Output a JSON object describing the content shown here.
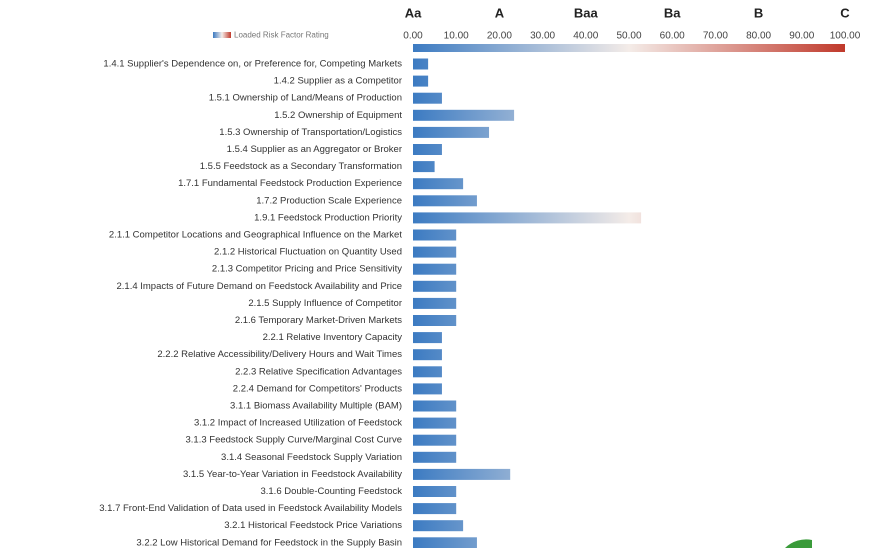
{
  "chart_data": {
    "type": "bar",
    "orientation": "horizontal",
    "legend_label": "Loaded Risk Factor Rating",
    "color_scale": [
      "#3c7bc2",
      "#f4ece8",
      "#c0392b"
    ],
    "xlim": [
      0,
      100
    ],
    "xticks": [
      {
        "value": 0,
        "label": "0.00"
      },
      {
        "value": 10,
        "label": "10.00"
      },
      {
        "value": 20,
        "label": "20.00"
      },
      {
        "value": 30,
        "label": "30.00"
      },
      {
        "value": 40,
        "label": "40.00"
      },
      {
        "value": 50,
        "label": "50.00"
      },
      {
        "value": 60,
        "label": "60.00"
      },
      {
        "value": 70,
        "label": "70.00"
      },
      {
        "value": 80,
        "label": "80.00"
      },
      {
        "value": 90,
        "label": "90.00"
      },
      {
        "value": 100,
        "label": "100.00"
      }
    ],
    "rating_ticks": [
      {
        "value": 0,
        "label": "Aa"
      },
      {
        "value": 20,
        "label": "A"
      },
      {
        "value": 40,
        "label": "Baa"
      },
      {
        "value": 60,
        "label": "Ba"
      },
      {
        "value": 80,
        "label": "B"
      },
      {
        "value": 100,
        "label": "C"
      }
    ],
    "categories": [
      "1.4.1  Supplier's Dependence on, or Preference for, Competing Markets",
      "1.4.2  Supplier as a Competitor",
      "1.5.1 Ownership of Land/Means of Production",
      "1.5.2 Ownership of Equipment",
      "1.5.3 Ownership of Transportation/Logistics",
      "1.5.4 Supplier as an Aggregator or Broker",
      "1.5.5 Feedstock as a Secondary Transformation",
      "1.7.1  Fundamental Feedstock Production Experience",
      "1.7.2 Production Scale Experience",
      "1.9.1 Feedstock Production Priority",
      "2.1.1 Competitor Locations and Geographical Influence on the Market",
      "2.1.2 Historical Fluctuation on Quantity Used",
      "2.1.3 Competitor Pricing and Price Sensitivity",
      "2.1.4 Impacts of Future Demand on Feedstock Availability and Price",
      "2.1.5 Supply Influence of Competitor",
      "2.1.6 Temporary Market-Driven Markets",
      "2.2.1 Relative Inventory Capacity",
      "2.2.2 Relative Accessibility/Delivery Hours and Wait Times",
      "2.2.3 Relative Specification Advantages",
      "2.2.4 Demand for Competitors' Products",
      "3.1.1 Biomass Availability Multiple (BAM)",
      "3.1.2 Impact of Increased Utilization of Feedstock",
      "3.1.3 Feedstock Supply Curve/Marginal Cost Curve",
      "3.1.4 Seasonal Feedstock Supply Variation",
      "3.1.5 Year-to-Year Variation in Feedstock Availability",
      "3.1.6 Double-Counting Feedstock",
      "3.1.7 Front-End Validation of Data used in Feedstock Availability Models",
      "3.2.1 Historical Feedstock Price Variations",
      "3.2.2 Low Historical Demand for Feedstock in the Supply Basin"
    ],
    "values": [
      3.5,
      3.5,
      6.7,
      23.4,
      17.6,
      6.7,
      5,
      11.6,
      14.8,
      52.8,
      10,
      10,
      10,
      10,
      10,
      10,
      6.7,
      6.7,
      6.7,
      6.7,
      10,
      10,
      10,
      10,
      22.5,
      10,
      10,
      11.6,
      14.8
    ]
  }
}
